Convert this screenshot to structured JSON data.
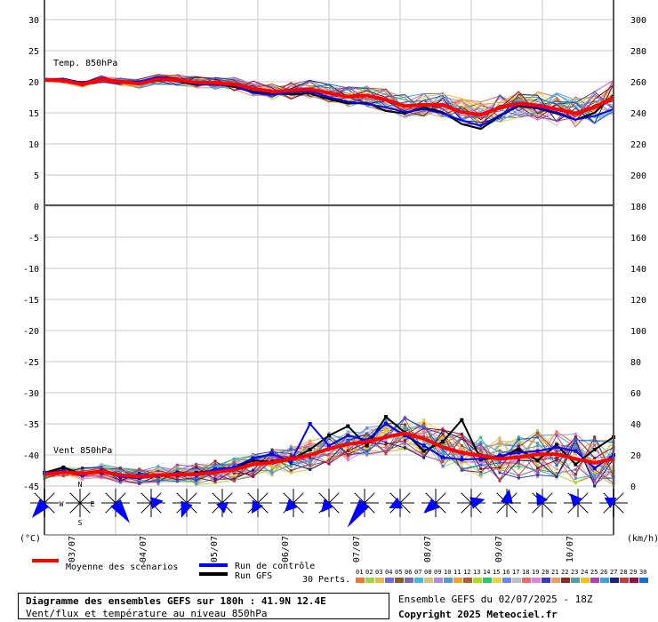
{
  "chart_data": [
    {
      "type": "line",
      "title": "Temp. 850hPa",
      "y_left_ticks": [
        "30",
        "25",
        "20",
        "15",
        "10",
        "5",
        "0"
      ],
      "y_right_ticks": [
        "300",
        "280",
        "260",
        "240",
        "220",
        "200",
        "180"
      ],
      "ylim": [
        0,
        30
      ],
      "grid": true,
      "x_dates": [
        "03/07",
        "04/07",
        "05/07",
        "06/07",
        "07/07",
        "08/07",
        "09/07",
        "10/07"
      ],
      "x_hours": [
        0,
        6,
        12,
        18,
        24,
        30,
        36,
        42,
        48,
        54,
        60,
        66,
        72,
        78,
        84,
        90,
        96,
        102,
        108,
        114,
        120,
        126,
        132,
        138,
        144,
        150,
        156,
        162,
        168,
        174,
        180
      ],
      "series": [
        {
          "name": "Moyenne des scénarios",
          "color": "#ff0000",
          "values": [
            20.3,
            20.2,
            19.6,
            20.4,
            20.0,
            19.7,
            20.4,
            20.3,
            19.9,
            19.8,
            19.6,
            18.9,
            18.4,
            18.6,
            18.8,
            18.2,
            17.6,
            17.8,
            17.1,
            16.1,
            16.3,
            16.3,
            15.1,
            14.7,
            15.8,
            16.5,
            16.2,
            15.6,
            14.9,
            15.9,
            17.5
          ]
        },
        {
          "name": "Run de contrôle",
          "color": "#0000ff",
          "values": [
            20.2,
            20.5,
            19.8,
            20.6,
            20.1,
            20.0,
            20.8,
            20.5,
            19.6,
            19.5,
            19.4,
            18.2,
            17.9,
            18.3,
            18.5,
            17.5,
            16.8,
            16.4,
            15.9,
            15.1,
            15.6,
            14.9,
            13.8,
            12.9,
            14.6,
            16.3,
            15.8,
            15.1,
            13.9,
            14.5,
            15.6
          ]
        },
        {
          "name": "Run GFS",
          "color": "#000000",
          "values": [
            20.2,
            20.4,
            19.9,
            20.4,
            20.0,
            19.8,
            20.6,
            20.1,
            19.5,
            19.6,
            19.2,
            18.4,
            18.1,
            18.0,
            18.1,
            17.2,
            16.5,
            16.6,
            15.3,
            14.9,
            15.9,
            15.1,
            13.2,
            12.4,
            14.5,
            16.1,
            15.7,
            14.9,
            13.9,
            15.0,
            17.9
          ]
        }
      ]
    },
    {
      "type": "line",
      "title": "Vent 850hPa",
      "y_left_ticks": [
        "-5",
        "-10",
        "-15",
        "-20",
        "-25",
        "-30",
        "-35",
        "-40",
        "-45"
      ],
      "y_right_ticks": [
        "160",
        "140",
        "120",
        "100",
        "80",
        "60",
        "40",
        "20",
        "0"
      ],
      "ylim_kmh": [
        0,
        180
      ],
      "grid": true,
      "left_unit": "(°C)",
      "right_unit": "(km/h)",
      "series": [
        {
          "name": "Moyenne des scénarios",
          "color": "#ff0000",
          "values": [
            7.5,
            9.0,
            8.0,
            9.5,
            7.0,
            6.0,
            7.0,
            7.5,
            7.5,
            9.0,
            10.5,
            14.0,
            15.0,
            17.5,
            20.0,
            24.0,
            27.0,
            28.5,
            31.5,
            34.0,
            30.5,
            25.0,
            21.5,
            19.5,
            17.5,
            18.5,
            20.5,
            20.5,
            17.5,
            15.0,
            17.5
          ]
        },
        {
          "name": "Run de contrôle",
          "color": "#0000ff",
          "values": [
            8.5,
            10.0,
            7.0,
            10.0,
            6.0,
            5.0,
            6.5,
            8.5,
            7.0,
            11.0,
            12.0,
            18.0,
            20.5,
            16.0,
            40.0,
            26.0,
            32.5,
            29.5,
            40.0,
            32.5,
            26.0,
            18.5,
            17.0,
            17.5,
            19.5,
            21.5,
            22.5,
            25.0,
            22.5,
            11.5,
            20.0
          ]
        },
        {
          "name": "Run GFS",
          "color": "#000000",
          "values": [
            8.5,
            12.0,
            7.5,
            9.0,
            6.5,
            5.5,
            6.5,
            7.0,
            8.5,
            10.0,
            11.5,
            16.5,
            15.5,
            17.0,
            23.5,
            32.5,
            38.5,
            26.0,
            44.5,
            34.5,
            22.5,
            28.5,
            42.5,
            17.0,
            18.5,
            23.5,
            16.5,
            26.5,
            14.0,
            23.5,
            31.5
          ]
        }
      ]
    }
  ],
  "wind_arrows": [
    {
      "bearing": 220,
      "size": 22
    },
    {
      "bearing": 0,
      "size": 0
    },
    {
      "bearing": 145,
      "size": 28
    },
    {
      "bearing": 80,
      "size": 14
    },
    {
      "bearing": 200,
      "size": 18
    },
    {
      "bearing": 170,
      "size": 12
    },
    {
      "bearing": 210,
      "size": 14
    },
    {
      "bearing": 225,
      "size": 14
    },
    {
      "bearing": 220,
      "size": 14
    },
    {
      "bearing": 215,
      "size": 34
    },
    {
      "bearing": 245,
      "size": 14
    },
    {
      "bearing": 230,
      "size": 18
    },
    {
      "bearing": 75,
      "size": 16
    },
    {
      "bearing": 10,
      "size": 16
    },
    {
      "bearing": 330,
      "size": 14
    },
    {
      "bearing": 320,
      "size": 14
    },
    {
      "bearing": 300,
      "size": 12
    }
  ],
  "compass": {
    "n": "N",
    "s": "S",
    "e": "E",
    "w": "W"
  },
  "legend": {
    "mean": "Moyenne des scénarios",
    "control": "Run de contrôle",
    "gfs": "Run GFS",
    "perts": "30 Perts.",
    "numbers": [
      "01",
      "02",
      "03",
      "04",
      "05",
      "06",
      "07",
      "08",
      "09",
      "10",
      "11",
      "12",
      "13",
      "14",
      "15",
      "16",
      "17",
      "18",
      "19",
      "20",
      "21",
      "22",
      "23",
      "24",
      "25",
      "26",
      "27",
      "28",
      "29",
      "30"
    ],
    "colors": [
      "#e8763f",
      "#9fd442",
      "#e8b84a",
      "#6f6fd6",
      "#8a5a2f",
      "#7a6ea8",
      "#4fb2e6",
      "#d6c27a",
      "#b48ad6",
      "#5a9ad6",
      "#f2a22f",
      "#b05c3a",
      "#a9dd2a",
      "#2ec26a",
      "#e8d43a",
      "#6a88f2",
      "#c0c0c0",
      "#f06a6a",
      "#e080e0",
      "#3a3ac0",
      "#e6a060",
      "#8a2a2a",
      "#50a0a0",
      "#f0c020",
      "#b040b0",
      "#40a0e0",
      "#202080",
      "#c04040",
      "#901040",
      "#1a6ad6"
    ]
  },
  "footer": {
    "line1": "Diagramme des ensembles GEFS sur 180h : 41.9N 12.4E",
    "line2": "Vent/flux et température au niveau 850hPa",
    "ensemble": "Ensemble GEFS du 02/07/2025 - 18Z",
    "copyright": "Copyright 2025 Meteociel.fr"
  }
}
